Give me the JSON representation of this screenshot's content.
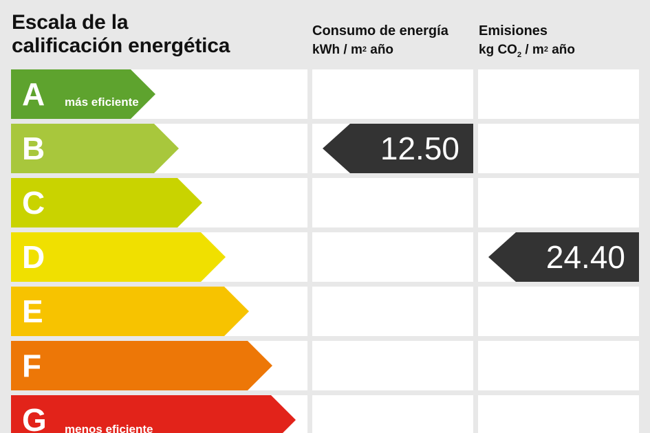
{
  "title": {
    "line1": "Escala de la",
    "line2": "calificación energética"
  },
  "columns": {
    "energy": {
      "line1": "Consumo de energía",
      "unit_pre": "kWh / m",
      "unit_sup": "2",
      "unit_post": " año"
    },
    "emissions": {
      "line1": "Emisiones",
      "unit_pre": "kg CO",
      "unit_sub": "2",
      "unit_mid": " / m",
      "unit_sup": "2",
      "unit_post": " año"
    }
  },
  "grades": [
    {
      "letter": "A",
      "note": "más eficiente",
      "color": "#5ea32e"
    },
    {
      "letter": "B",
      "note": "",
      "color": "#a8c73c"
    },
    {
      "letter": "C",
      "note": "",
      "color": "#c9d300"
    },
    {
      "letter": "D",
      "note": "",
      "color": "#f0e000"
    },
    {
      "letter": "E",
      "note": "",
      "color": "#f7c300"
    },
    {
      "letter": "F",
      "note": "",
      "color": "#ed7707"
    },
    {
      "letter": "G",
      "note": "menos eficiente",
      "color": "#e2231a"
    }
  ],
  "ratings": {
    "energy": {
      "value": "12.50",
      "grade": "B"
    },
    "emissions": {
      "value": "24.40",
      "grade": "D"
    }
  },
  "colors": {
    "background": "#e8e8e8",
    "cell": "#ffffff",
    "marker": "#333333"
  }
}
